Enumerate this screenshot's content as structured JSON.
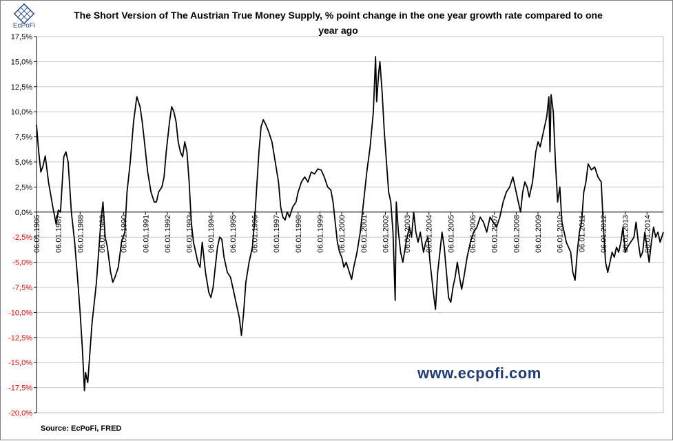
{
  "branding": {
    "logo_text": "EcPoFi",
    "watermark": "www.ecpofi.com",
    "accent_color": "#1f3d7a"
  },
  "source_note": "Source: EcPoFi,  FRED",
  "chart_data": {
    "type": "line",
    "title_line1": "The Short Version of The Austrian True Money Supply, % point change in the one year growth rate compared to one",
    "title_line2": "year ago",
    "xlabel": "",
    "ylabel": "",
    "ylim": [
      -20,
      17.5
    ],
    "grid": true,
    "legend": "none",
    "y_ticks": [
      "17,5%",
      "15,0%",
      "12,5%",
      "10,0%",
      "7,5%",
      "5,0%",
      "2,5%",
      "0,0%",
      "-2,5%",
      "-5,0%",
      "-7,5%",
      "-10,0%",
      "-12,5%",
      "-15,0%",
      "-17,5%",
      "-20,0%"
    ],
    "y_tick_values": [
      17.5,
      15,
      12.5,
      10,
      7.5,
      5,
      2.5,
      0,
      -2.5,
      -5,
      -7.5,
      -10,
      -12.5,
      -15,
      -17.5,
      -20
    ],
    "negative_tick_color": "#ff0000",
    "positive_tick_color": "#000000",
    "line_color": "#000000",
    "x_range": [
      1986.0,
      2014.75
    ],
    "x_tick_labels": [
      "06.01.1986",
      "06.01.1987",
      "06.01.1988",
      "06.01.1989",
      "06.01.1990",
      "06.01.1991",
      "06.01.1992",
      "06.01.1993",
      "06.01.1994",
      "06.01.1995",
      "06.01.1996",
      "06.01.1997",
      "06.01.1998",
      "06.01.1999",
      "06.01.2000",
      "06.01.2001",
      "06.01.2002",
      "06.01.2003",
      "06.01.2004",
      "06.01.2005",
      "06.01.2006",
      "06.01.2007",
      "06.01.2008",
      "06.01.2009",
      "06.01.2010",
      "06.01.2011",
      "06.01.2012",
      "06.01.2013",
      "06.01.2014"
    ],
    "x_tick_values": [
      1986,
      1987,
      1988,
      1989,
      1990,
      1991,
      1992,
      1993,
      1994,
      1995,
      1996,
      1997,
      1998,
      1999,
      2000,
      2001,
      2002,
      2003,
      2004,
      2005,
      2006,
      2007,
      2008,
      2009,
      2010,
      2011,
      2012,
      2013,
      2014
    ],
    "series": [
      {
        "values": [
          [
            1986.0,
            8.7
          ],
          [
            1986.1,
            6.0
          ],
          [
            1986.2,
            4.0
          ],
          [
            1986.3,
            4.6
          ],
          [
            1986.4,
            5.6
          ],
          [
            1986.55,
            3.0
          ],
          [
            1986.75,
            0.5
          ],
          [
            1986.9,
            -1.2
          ],
          [
            1987.0,
            0.2
          ],
          [
            1987.1,
            0.0
          ],
          [
            1987.25,
            5.5
          ],
          [
            1987.35,
            6.0
          ],
          [
            1987.45,
            5.0
          ],
          [
            1987.6,
            0.0
          ],
          [
            1987.75,
            -3.0
          ],
          [
            1987.9,
            -7.0
          ],
          [
            1988.0,
            -10.0
          ],
          [
            1988.1,
            -13.5
          ],
          [
            1988.2,
            -17.8
          ],
          [
            1988.25,
            -16.0
          ],
          [
            1988.35,
            -17.0
          ],
          [
            1988.45,
            -14.0
          ],
          [
            1988.55,
            -11.0
          ],
          [
            1988.65,
            -9.0
          ],
          [
            1988.75,
            -7.0
          ],
          [
            1988.85,
            -4.0
          ],
          [
            1988.95,
            -1.0
          ],
          [
            1989.05,
            1.0
          ],
          [
            1989.15,
            -2.5
          ],
          [
            1989.25,
            -3.5
          ],
          [
            1989.4,
            -6.0
          ],
          [
            1989.5,
            -7.0
          ],
          [
            1989.6,
            -6.5
          ],
          [
            1989.75,
            -5.5
          ],
          [
            1989.9,
            -3.0
          ],
          [
            1990.05,
            -2.0
          ],
          [
            1990.15,
            2.0
          ],
          [
            1990.3,
            5.0
          ],
          [
            1990.45,
            9.0
          ],
          [
            1990.6,
            11.5
          ],
          [
            1990.75,
            10.5
          ],
          [
            1990.85,
            9.0
          ],
          [
            1990.95,
            7.0
          ],
          [
            1991.1,
            4.0
          ],
          [
            1991.25,
            2.0
          ],
          [
            1991.4,
            1.0
          ],
          [
            1991.5,
            1.0
          ],
          [
            1991.6,
            2.0
          ],
          [
            1991.75,
            2.5
          ],
          [
            1991.85,
            3.5
          ],
          [
            1991.95,
            6.0
          ],
          [
            1992.1,
            9.0
          ],
          [
            1992.2,
            10.5
          ],
          [
            1992.3,
            10.0
          ],
          [
            1992.4,
            9.0
          ],
          [
            1992.5,
            7.0
          ],
          [
            1992.6,
            6.0
          ],
          [
            1992.7,
            5.5
          ],
          [
            1992.8,
            7.0
          ],
          [
            1992.9,
            6.0
          ],
          [
            1993.0,
            3.0
          ],
          [
            1993.1,
            -1.0
          ],
          [
            1993.2,
            -3.0
          ],
          [
            1993.3,
            -4.0
          ],
          [
            1993.4,
            -5.0
          ],
          [
            1993.5,
            -5.5
          ],
          [
            1993.6,
            -3.0
          ],
          [
            1993.75,
            -6.0
          ],
          [
            1993.9,
            -8.0
          ],
          [
            1994.0,
            -8.5
          ],
          [
            1994.1,
            -7.5
          ],
          [
            1994.2,
            -5.5
          ],
          [
            1994.3,
            -3.5
          ],
          [
            1994.4,
            -2.5
          ],
          [
            1994.5,
            -2.7
          ],
          [
            1994.6,
            -4.5
          ],
          [
            1994.75,
            -6.0
          ],
          [
            1994.9,
            -6.5
          ],
          [
            1995.0,
            -7.5
          ],
          [
            1995.15,
            -9.0
          ],
          [
            1995.3,
            -10.5
          ],
          [
            1995.4,
            -12.3
          ],
          [
            1995.5,
            -10.0
          ],
          [
            1995.6,
            -7.0
          ],
          [
            1995.75,
            -5.0
          ],
          [
            1995.9,
            -3.5
          ],
          [
            1996.0,
            -1.0
          ],
          [
            1996.1,
            2.5
          ],
          [
            1996.2,
            6.0
          ],
          [
            1996.3,
            8.5
          ],
          [
            1996.4,
            9.2
          ],
          [
            1996.5,
            8.8
          ],
          [
            1996.65,
            8.0
          ],
          [
            1996.8,
            7.0
          ],
          [
            1996.95,
            5.0
          ],
          [
            1997.1,
            3.0
          ],
          [
            1997.2,
            0.5
          ],
          [
            1997.3,
            -0.5
          ],
          [
            1997.4,
            -0.8
          ],
          [
            1997.5,
            0.0
          ],
          [
            1997.6,
            -0.5
          ],
          [
            1997.75,
            0.5
          ],
          [
            1997.9,
            1.0
          ],
          [
            1998.0,
            2.0
          ],
          [
            1998.15,
            3.0
          ],
          [
            1998.3,
            3.5
          ],
          [
            1998.45,
            3.0
          ],
          [
            1998.6,
            4.0
          ],
          [
            1998.75,
            3.8
          ],
          [
            1998.9,
            4.3
          ],
          [
            1999.05,
            4.2
          ],
          [
            1999.2,
            3.5
          ],
          [
            1999.35,
            2.5
          ],
          [
            1999.5,
            2.2
          ],
          [
            1999.6,
            1.0
          ],
          [
            1999.7,
            -1.0
          ],
          [
            1999.8,
            -3.0
          ],
          [
            1999.9,
            -4.0
          ],
          [
            2000.0,
            -4.5
          ],
          [
            2000.1,
            -5.5
          ],
          [
            2000.2,
            -5.0
          ],
          [
            2000.35,
            -6.0
          ],
          [
            2000.45,
            -6.7
          ],
          [
            2000.55,
            -5.5
          ],
          [
            2000.7,
            -4.0
          ],
          [
            2000.85,
            -2.0
          ],
          [
            2001.0,
            1.0
          ],
          [
            2001.15,
            4.0
          ],
          [
            2001.3,
            6.5
          ],
          [
            2001.45,
            10.0
          ],
          [
            2001.55,
            15.5
          ],
          [
            2001.6,
            11.0
          ],
          [
            2001.7,
            14.0
          ],
          [
            2001.75,
            15.0
          ],
          [
            2001.85,
            12.0
          ],
          [
            2001.95,
            8.0
          ],
          [
            2002.05,
            5.0
          ],
          [
            2002.15,
            2.0
          ],
          [
            2002.25,
            1.0
          ],
          [
            2002.35,
            -2.0
          ],
          [
            2002.45,
            -8.8
          ],
          [
            2002.5,
            1.0
          ],
          [
            2002.6,
            -2.0
          ],
          [
            2002.7,
            -4.0
          ],
          [
            2002.8,
            -5.0
          ],
          [
            2002.95,
            -3.0
          ],
          [
            2003.1,
            -1.5
          ],
          [
            2003.2,
            -2.5
          ],
          [
            2003.3,
            0.0
          ],
          [
            2003.4,
            -2.0
          ],
          [
            2003.5,
            -3.0
          ],
          [
            2003.6,
            -2.0
          ],
          [
            2003.75,
            -4.0
          ],
          [
            2003.85,
            -3.0
          ],
          [
            2003.95,
            -2.5
          ],
          [
            2004.05,
            -5.0
          ],
          [
            2004.2,
            -8.0
          ],
          [
            2004.3,
            -9.7
          ],
          [
            2004.4,
            -6.0
          ],
          [
            2004.5,
            -4.0
          ],
          [
            2004.6,
            -2.0
          ],
          [
            2004.7,
            -3.5
          ],
          [
            2004.8,
            -6.0
          ],
          [
            2004.9,
            -8.5
          ],
          [
            2005.0,
            -9.0
          ],
          [
            2005.1,
            -7.5
          ],
          [
            2005.2,
            -6.5
          ],
          [
            2005.3,
            -5.0
          ],
          [
            2005.4,
            -6.5
          ],
          [
            2005.5,
            -7.7
          ],
          [
            2005.6,
            -6.5
          ],
          [
            2005.75,
            -4.5
          ],
          [
            2005.9,
            -3.0
          ],
          [
            2006.05,
            -2.0
          ],
          [
            2006.2,
            -1.5
          ],
          [
            2006.35,
            -0.5
          ],
          [
            2006.5,
            -1.0
          ],
          [
            2006.65,
            -2.0
          ],
          [
            2006.8,
            -0.5
          ],
          [
            2006.95,
            -1.0
          ],
          [
            2007.1,
            -1.5
          ],
          [
            2007.25,
            -0.5
          ],
          [
            2007.4,
            1.0
          ],
          [
            2007.55,
            2.0
          ],
          [
            2007.7,
            2.5
          ],
          [
            2007.85,
            3.5
          ],
          [
            2008.0,
            2.0
          ],
          [
            2008.1,
            1.0
          ],
          [
            2008.2,
            0.0
          ],
          [
            2008.3,
            2.0
          ],
          [
            2008.4,
            3.0
          ],
          [
            2008.5,
            2.5
          ],
          [
            2008.6,
            1.5
          ],
          [
            2008.75,
            3.0
          ],
          [
            2008.9,
            6.0
          ],
          [
            2009.0,
            7.0
          ],
          [
            2009.1,
            6.5
          ],
          [
            2009.25,
            8.0
          ],
          [
            2009.4,
            9.5
          ],
          [
            2009.5,
            11.5
          ],
          [
            2009.55,
            6.0
          ],
          [
            2009.6,
            11.7
          ],
          [
            2009.7,
            10.0
          ],
          [
            2009.8,
            5.0
          ],
          [
            2009.9,
            1.0
          ],
          [
            2010.0,
            2.5
          ],
          [
            2010.1,
            -1.0
          ],
          [
            2010.2,
            -2.0
          ],
          [
            2010.3,
            -3.0
          ],
          [
            2010.4,
            -3.5
          ],
          [
            2010.5,
            -4.0
          ],
          [
            2010.6,
            -6.0
          ],
          [
            2010.7,
            -6.8
          ],
          [
            2010.8,
            -4.0
          ],
          [
            2010.9,
            -2.0
          ],
          [
            2011.0,
            -1.0
          ],
          [
            2011.1,
            2.0
          ],
          [
            2011.2,
            3.0
          ],
          [
            2011.3,
            4.8
          ],
          [
            2011.45,
            4.2
          ],
          [
            2011.6,
            4.5
          ],
          [
            2011.75,
            3.5
          ],
          [
            2011.9,
            3.0
          ],
          [
            2012.0,
            -1.5
          ],
          [
            2012.1,
            -5.0
          ],
          [
            2012.2,
            -6.0
          ],
          [
            2012.3,
            -5.0
          ],
          [
            2012.4,
            -4.0
          ],
          [
            2012.5,
            -4.5
          ],
          [
            2012.6,
            -3.5
          ],
          [
            2012.7,
            -4.0
          ],
          [
            2012.8,
            -3.0
          ],
          [
            2012.9,
            -1.5
          ],
          [
            2013.0,
            -4.0
          ],
          [
            2013.1,
            -3.5
          ],
          [
            2013.25,
            -3.0
          ],
          [
            2013.4,
            -2.5
          ],
          [
            2013.5,
            -1.0
          ],
          [
            2013.6,
            -3.0
          ],
          [
            2013.7,
            -4.5
          ],
          [
            2013.8,
            -4.0
          ],
          [
            2013.9,
            -2.0
          ],
          [
            2014.0,
            -3.5
          ],
          [
            2014.1,
            -5.0
          ],
          [
            2014.2,
            -3.0
          ],
          [
            2014.3,
            -1.5
          ],
          [
            2014.4,
            -2.5
          ],
          [
            2014.5,
            -2.0
          ],
          [
            2014.6,
            -3.0
          ],
          [
            2014.75,
            -2.0
          ]
        ]
      }
    ]
  }
}
